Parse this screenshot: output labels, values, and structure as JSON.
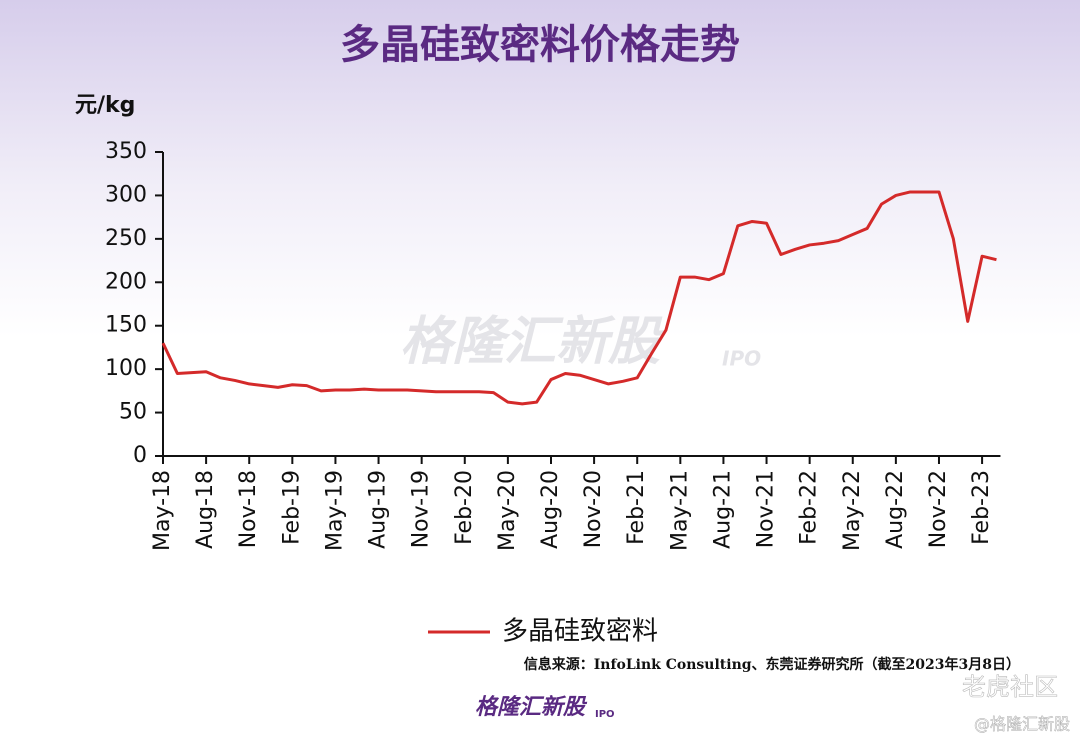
{
  "chart_data": {
    "type": "line",
    "title": "多晶硅致密料价格走势",
    "y_label": "元/kg",
    "categories": [
      "May-18",
      null,
      null,
      "Aug-18",
      null,
      null,
      "Nov-18",
      null,
      null,
      "Feb-19",
      null,
      null,
      "May-19",
      null,
      null,
      "Aug-19",
      null,
      null,
      "Nov-19",
      null,
      null,
      "Feb-20",
      null,
      null,
      "May-20",
      null,
      null,
      "Aug-20",
      null,
      null,
      "Nov-20",
      null,
      null,
      "Feb-21",
      null,
      null,
      "May-21",
      null,
      null,
      "Aug-21",
      null,
      null,
      "Nov-21",
      null,
      null,
      "Feb-22",
      null,
      null,
      "May-22",
      null,
      null,
      "Aug-22",
      null,
      null,
      "Nov-22",
      null,
      null,
      "Feb-23",
      null
    ],
    "series": [
      {
        "name": "多晶硅致密料",
        "color": "#d42a2a",
        "values": [
          130,
          95,
          96,
          97,
          90,
          87,
          83,
          81,
          79,
          82,
          81,
          75,
          76,
          76,
          77,
          76,
          76,
          76,
          75,
          74,
          74,
          74,
          74,
          73,
          62,
          60,
          62,
          88,
          95,
          93,
          88,
          83,
          86,
          90,
          118,
          145,
          206,
          206,
          203,
          210,
          265,
          270,
          268,
          232,
          238,
          243,
          245,
          248,
          255,
          262,
          290,
          300,
          304,
          304,
          304,
          250,
          155,
          230,
          226
        ]
      }
    ],
    "ylim": [
      0,
      350
    ],
    "yticks": [
      0,
      50,
      100,
      150,
      200,
      250,
      300,
      350
    ],
    "legend": "bottom",
    "source": "信息来源：InfoLink Consulting、东莞证券研究所（截至2023年3月8日）",
    "watermark": "格隆汇新股",
    "watermark_sub": "IPO",
    "brand": "格隆汇新股",
    "brand_sub": "IPO",
    "community": "老虎社区",
    "credit": "@格隆汇新股"
  }
}
